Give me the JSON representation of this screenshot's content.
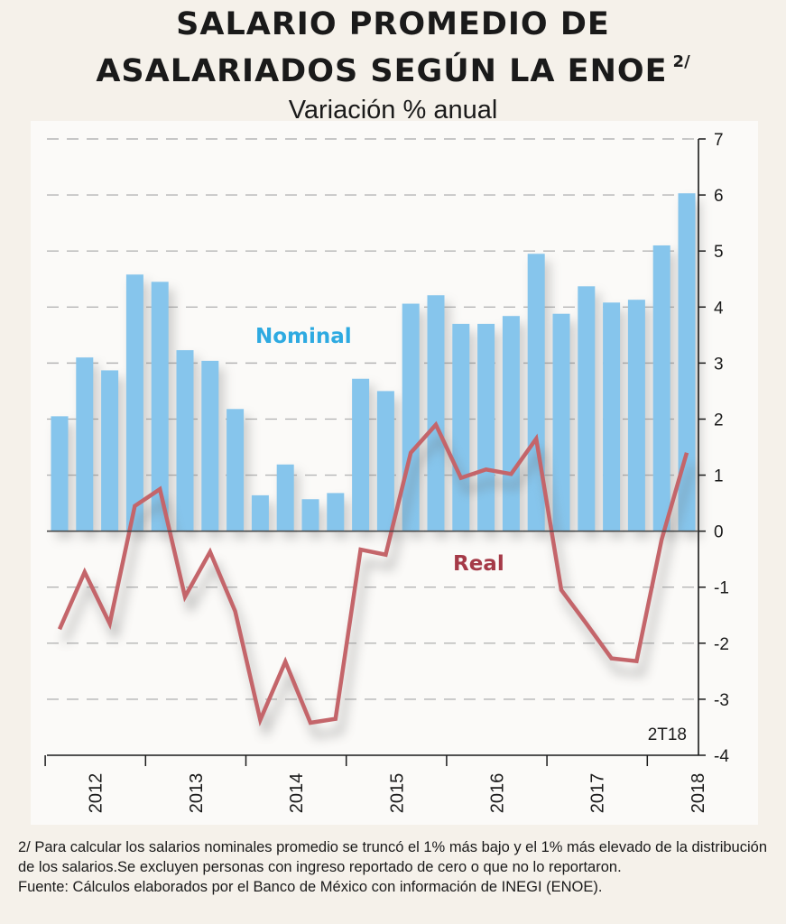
{
  "title": {
    "line1": "SALARIO PROMEDIO DE",
    "line2": "ASALARIADOS SEGÚN LA ENOE",
    "note_ref": "2/"
  },
  "subtitle": "Variación % anual",
  "chart_data": {
    "type": "bar",
    "title": "SALARIO PROMEDIO DE ASALARIADOS SEGÚN LA ENOE",
    "subtitle": "Variación % anual",
    "ylim": [
      -4,
      7
    ],
    "y_ticks": [
      7,
      6,
      5,
      4,
      3,
      2,
      1,
      0,
      -1,
      -2,
      -3,
      -4
    ],
    "grid": true,
    "x_tick_labels": [
      "2012",
      "2013",
      "2014",
      "2015",
      "2016",
      "2017",
      "2018"
    ],
    "series": [
      {
        "name": "Nominal",
        "type": "bar",
        "color": "#86c5ec",
        "values": [
          2.05,
          3.1,
          2.87,
          4.58,
          4.45,
          3.23,
          3.04,
          2.18,
          0.64,
          1.19,
          0.57,
          0.68,
          2.72,
          2.5,
          4.06,
          4.21,
          3.7,
          3.7,
          3.84,
          4.95,
          3.88,
          4.37,
          4.08,
          4.13,
          5.1,
          6.03
        ]
      },
      {
        "name": "Real",
        "type": "line",
        "color": "#c4656a",
        "values": [
          -1.75,
          -0.73,
          -1.65,
          0.45,
          0.75,
          -1.17,
          -0.37,
          -1.43,
          -3.37,
          -2.33,
          -3.42,
          -3.35,
          -0.33,
          -0.42,
          1.4,
          1.9,
          0.95,
          1.1,
          1.02,
          1.65,
          -1.05,
          -1.65,
          -2.27,
          -2.32,
          -0.15,
          1.4
        ]
      }
    ],
    "series_label_colors": {
      "Nominal": "#2eaae1",
      "Real": "#a53a48"
    },
    "period_label": "2T18"
  },
  "footnote": {
    "line1": "2/ Para calcular los salarios nominales promedio se truncó el 1% más bajo y el 1% más elevado de la distribución de los salarios.Se excluyen personas con ingreso reportado de cero o que no lo reportaron.",
    "line2": "Fuente: Cálculos elaborados por el Banco de México con información de INEGI (ENOE)."
  }
}
